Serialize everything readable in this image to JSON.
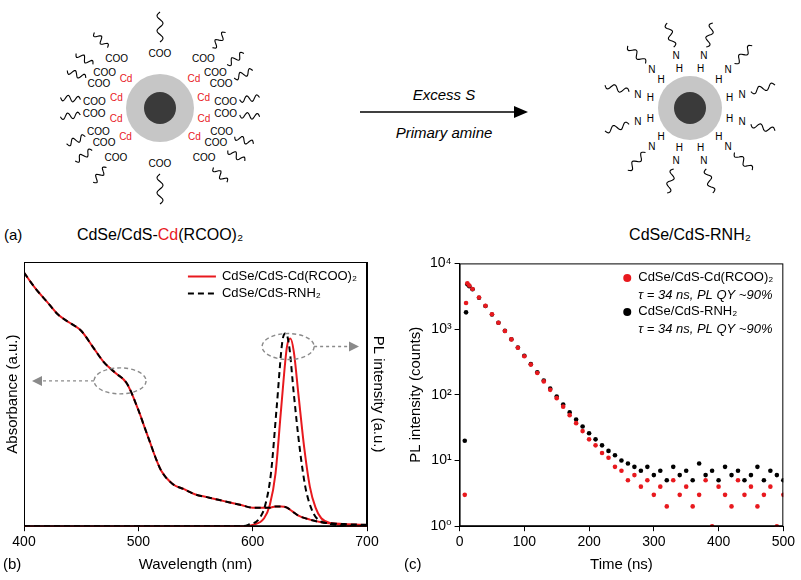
{
  "diagram": {
    "panel": "(a)",
    "left": {
      "label": "CdSe/CdS-Cd(RCOO)₂",
      "highlight": "Cd",
      "ligand_texts": [
        "COO",
        "Cd"
      ]
    },
    "arrow": {
      "above": "Excess S",
      "below": "Primary amine"
    },
    "right": {
      "label": "CdSe/CdS-RNH₂",
      "ligand_texts": [
        "H",
        "N"
      ]
    }
  },
  "chart_data": [
    {
      "type": "line",
      "panel": "(b)",
      "x_label": "Wavelength (nm)",
      "y_label": "Absorbance (a.u.)",
      "y2_label": "PL intensity (a.u.)",
      "xlim": [
        400,
        700
      ],
      "xticks": [
        400,
        500,
        600,
        700
      ],
      "ylim": [
        0,
        1
      ],
      "y2lim": [
        0,
        1
      ],
      "tick_labels": "x",
      "grid": false,
      "legend": "upper right",
      "series": [
        {
          "name": "CdSe/CdS-Cd(RCOO)₂",
          "color": "#e8191e",
          "line_style": "solid",
          "x": [
            400,
            410,
            420,
            430,
            440,
            450,
            460,
            470,
            480,
            490,
            500,
            505,
            510,
            515,
            520,
            530,
            540,
            550,
            560,
            570,
            580,
            590,
            600,
            610,
            615,
            620,
            625,
            630,
            635,
            640,
            650,
            660,
            680,
            700
          ],
          "values": [
            0.96,
            0.9,
            0.85,
            0.8,
            0.77,
            0.74,
            0.68,
            0.62,
            0.58,
            0.54,
            0.44,
            0.38,
            0.32,
            0.26,
            0.21,
            0.16,
            0.14,
            0.12,
            0.11,
            0.1,
            0.09,
            0.08,
            0.07,
            0.07,
            0.07,
            0.075,
            0.075,
            0.07,
            0.055,
            0.04,
            0.025,
            0.015,
            0.008,
            0.005
          ]
        },
        {
          "name": "CdSe/CdS-RNH₂",
          "color": "#000000",
          "line_style": "dashed",
          "x": [
            400,
            410,
            420,
            430,
            440,
            450,
            460,
            470,
            480,
            490,
            500,
            505,
            510,
            515,
            520,
            530,
            540,
            550,
            560,
            570,
            580,
            590,
            600,
            610,
            615,
            620,
            625,
            630,
            635,
            640,
            650,
            660,
            680,
            700
          ],
          "values": [
            0.96,
            0.9,
            0.85,
            0.8,
            0.77,
            0.74,
            0.68,
            0.62,
            0.58,
            0.54,
            0.44,
            0.38,
            0.32,
            0.26,
            0.21,
            0.16,
            0.14,
            0.12,
            0.11,
            0.1,
            0.09,
            0.08,
            0.07,
            0.07,
            0.07,
            0.075,
            0.075,
            0.07,
            0.055,
            0.04,
            0.025,
            0.015,
            0.008,
            0.005
          ]
        },
        {
          "name": "CdSe/CdS-Cd(RCOO)₂",
          "color": "#e8191e",
          "line_style": "solid",
          "axis": "y2",
          "x": [
            400,
            590,
            600,
            610,
            615,
            620,
            625,
            630,
            633,
            636,
            640,
            645,
            650,
            655,
            660,
            670,
            680,
            700
          ],
          "values": [
            0,
            0,
            0.005,
            0.03,
            0.08,
            0.2,
            0.45,
            0.68,
            0.71,
            0.66,
            0.5,
            0.3,
            0.15,
            0.07,
            0.03,
            0.01,
            0.003,
            0
          ]
        },
        {
          "name": "CdSe/CdS-RNH₂",
          "color": "#000000",
          "line_style": "dashed",
          "axis": "y2",
          "x": [
            400,
            590,
            596,
            606,
            611,
            616,
            621,
            626,
            629,
            632,
            636,
            641,
            646,
            651,
            656,
            666,
            676,
            700
          ],
          "values": [
            0,
            0,
            0.005,
            0.03,
            0.08,
            0.2,
            0.45,
            0.7,
            0.73,
            0.68,
            0.5,
            0.3,
            0.15,
            0.07,
            0.03,
            0.01,
            0.003,
            0
          ]
        }
      ]
    },
    {
      "type": "scatter",
      "panel": "(c)",
      "x_label": "Time (ns)",
      "y_label": "PL intensity (counts)",
      "log": "y",
      "xlim": [
        0,
        500
      ],
      "xticks": [
        0,
        100,
        200,
        300,
        400,
        500
      ],
      "ylim": [
        1,
        10000
      ],
      "yticks": [
        {
          "value": 1,
          "label": "10⁰"
        },
        {
          "value": 10,
          "label": "10¹"
        },
        {
          "value": 100,
          "label": "10²"
        },
        {
          "value": 1000,
          "label": "10³"
        },
        {
          "value": 10000,
          "label": "10⁴"
        }
      ],
      "grid": false,
      "legend": "upper right",
      "x": [
        8,
        10,
        12,
        15,
        20,
        30,
        40,
        50,
        60,
        70,
        80,
        90,
        100,
        110,
        120,
        130,
        140,
        150,
        160,
        170,
        180,
        190,
        200,
        210,
        220,
        230,
        240,
        250,
        260,
        270,
        280,
        290,
        300,
        310,
        320,
        330,
        340,
        350,
        360,
        370,
        380,
        390,
        400,
        410,
        420,
        430,
        440,
        450,
        460,
        470,
        480,
        490,
        500
      ],
      "series": [
        {
          "name": "CdSe/CdS-Cd(RCOO)₂",
          "annotation": "τ = 34 ns, PL QY ~90%",
          "color": "#e8191e",
          "marker": "circle",
          "values": [
            3,
            2500,
            5000,
            4600,
            4070,
            3030,
            2260,
            1680,
            1250,
            935,
            697,
            519,
            387,
            288,
            215,
            160,
            119,
            89,
            66,
            49,
            37,
            28,
            21,
            17,
            13,
            11,
            8,
            7,
            5,
            6,
            4,
            5,
            3,
            4,
            2,
            5,
            3,
            4,
            2,
            3,
            5,
            1,
            4,
            3,
            2,
            5,
            3,
            4,
            2,
            3,
            4,
            1,
            3
          ]
        },
        {
          "name": "CdSe/CdS-RNH₂",
          "annotation": "τ = 34 ns, PL QY ~90%",
          "color": "#000000",
          "marker": "circle",
          "values": [
            20,
            1800,
            4800,
            4500,
            4050,
            3000,
            2250,
            1670,
            1250,
            940,
            700,
            525,
            392,
            293,
            220,
            165,
            124,
            94,
            71,
            54,
            42,
            33,
            26,
            21,
            17,
            14,
            12,
            10,
            9,
            8,
            7,
            8,
            6,
            7,
            5,
            8,
            6,
            7,
            5,
            9,
            6,
            7,
            5,
            8,
            6,
            7,
            5,
            6,
            8,
            5,
            7,
            6,
            5
          ]
        }
      ]
    }
  ]
}
